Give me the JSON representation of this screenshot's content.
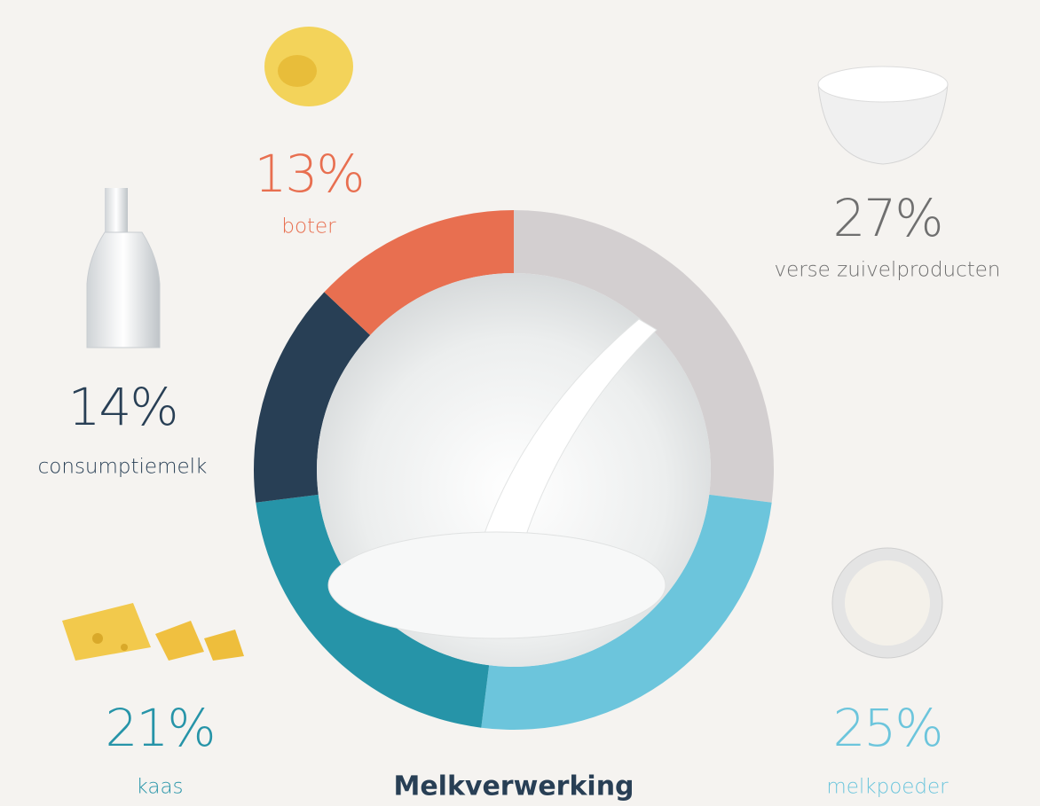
{
  "chart_data": {
    "type": "pie",
    "title": "Melkverwerking",
    "categories": [
      "verse zuivelproducten",
      "melkpoeder",
      "kaas",
      "consumptiemelk",
      "boter"
    ],
    "values": [
      27,
      25,
      21,
      14,
      13
    ],
    "value_labels": [
      "27%",
      "25%",
      "21%",
      "14%",
      "13%"
    ],
    "colors": [
      "#d3cfd0",
      "#6cc5dc",
      "#2694a8",
      "#283f55",
      "#e86f50"
    ]
  }
}
